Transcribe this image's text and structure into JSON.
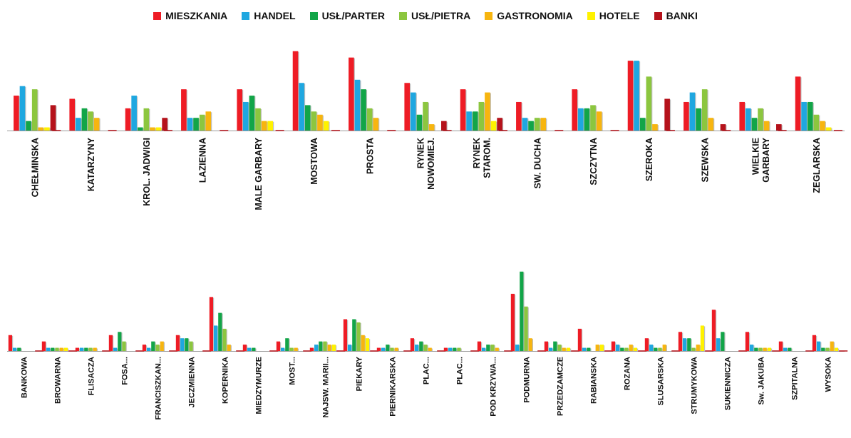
{
  "chart_data": [
    {
      "type": "bar",
      "series_names": [
        "MIESZKANIA",
        "HANDEL",
        "USŁ/PARTER",
        "USŁ/PIETRA",
        "GASTRONOMIA",
        "HOTELE",
        "BANKI"
      ],
      "categories": [
        "CHEŁMINSKA",
        "KATARZYNY",
        "KROL. JADWIGI",
        "LAZIENNA",
        "MALE GARBARY",
        "MOSTOWA",
        "PROSTA",
        "RYNEK NOWOMIEJ.",
        "RYNEK STAROM.",
        "SW. DUCHA",
        "SZCZYTNA",
        "SZEROKA",
        "SZEWSKA",
        "WIELKIE GARBARY",
        "ZEGLARSKA"
      ],
      "series": [
        {
          "name": "MIESZKANIA",
          "values": [
            11,
            10,
            7,
            13,
            13,
            25,
            23,
            15,
            13,
            9,
            13,
            22,
            9,
            9,
            17
          ]
        },
        {
          "name": "HANDEL",
          "values": [
            14,
            4,
            11,
            4,
            9,
            15,
            16,
            12,
            6,
            4,
            7,
            22,
            12,
            7,
            9
          ]
        },
        {
          "name": "USŁ/PARTER",
          "values": [
            3,
            7,
            1,
            4,
            11,
            8,
            13,
            5,
            6,
            3,
            7,
            4,
            7,
            4,
            9
          ]
        },
        {
          "name": "USŁ/PIETRA",
          "values": [
            13,
            6,
            7,
            5,
            7,
            6,
            7,
            9,
            9,
            4,
            8,
            17,
            13,
            7,
            5
          ]
        },
        {
          "name": "GASTRONOMIA",
          "values": [
            1,
            4,
            1,
            6,
            3,
            5,
            4,
            2,
            12,
            4,
            6,
            2,
            4,
            3,
            3
          ]
        },
        {
          "name": "HOTELE",
          "values": [
            1,
            0,
            1,
            0,
            3,
            3,
            0,
            0,
            3,
            0,
            0,
            0,
            0,
            0,
            1
          ]
        },
        {
          "name": "BANKI",
          "values": [
            8,
            0,
            4,
            0,
            0,
            0,
            0,
            3,
            4,
            0,
            0,
            10,
            2,
            2,
            0
          ]
        }
      ]
    },
    {
      "type": "bar",
      "series_names": [
        "MIESZKANIA",
        "HANDEL",
        "USŁ/PARTER",
        "USŁ/PIETRA",
        "GASTRONOMIA",
        "HOTELE",
        "BANKI"
      ],
      "categories": [
        "BANKOWA",
        "BROWARNA",
        "FLISACZA",
        "FOSA...",
        "FRANCISZKAN...",
        "JECZMIENNA",
        "KOPERNIKA",
        "MIEDZYMURZE",
        "MOST...",
        "NAJSW. MARII...",
        "PIEKARY",
        "PIERNIKARSKA",
        "PLAC...",
        "PLAC...",
        "POD KRZYWA...",
        "PODMURNA",
        "PRZEDZAMCZE",
        "RABIANSKA",
        "ROZANA",
        "SLUSARSKA",
        "STRUMYKOWA",
        "SUKIENNICZA",
        "Sw. JAKUBA",
        "SZPITALNA",
        "WYSOKA"
      ],
      "series": [
        {
          "name": "MIESZKANIA",
          "values": [
            5,
            3,
            1,
            5,
            2,
            5,
            17,
            2,
            3,
            1,
            10,
            1,
            4,
            1,
            3,
            18,
            3,
            7,
            3,
            4,
            6,
            13,
            6,
            3,
            5
          ]
        },
        {
          "name": "HANDEL",
          "values": [
            1,
            1,
            1,
            1,
            1,
            4,
            8,
            1,
            1,
            2,
            2,
            1,
            2,
            1,
            1,
            2,
            1,
            1,
            2,
            2,
            4,
            4,
            2,
            1,
            3
          ]
        },
        {
          "name": "USŁ/PARTER",
          "values": [
            1,
            1,
            1,
            6,
            3,
            4,
            12,
            1,
            4,
            3,
            10,
            2,
            3,
            1,
            2,
            25,
            3,
            1,
            1,
            1,
            4,
            6,
            1,
            1,
            1
          ]
        },
        {
          "name": "USŁ/PIETRA",
          "values": [
            0,
            1,
            1,
            3,
            2,
            3,
            7,
            0,
            1,
            3,
            9,
            1,
            2,
            1,
            2,
            14,
            2,
            0,
            1,
            1,
            1,
            0,
            1,
            0,
            1
          ]
        },
        {
          "name": "GASTRONOMIA",
          "values": [
            0,
            1,
            1,
            0,
            3,
            0,
            2,
            0,
            1,
            2,
            5,
            1,
            1,
            0,
            1,
            4,
            1,
            2,
            2,
            2,
            2,
            0,
            1,
            0,
            3
          ]
        },
        {
          "name": "HOTELE",
          "values": [
            0,
            1,
            0,
            0,
            0,
            0,
            0,
            0,
            0,
            2,
            4,
            0,
            0,
            0,
            0,
            0,
            1,
            2,
            1,
            0,
            8,
            0,
            1,
            0,
            1
          ]
        },
        {
          "name": "BANKI",
          "values": [
            0,
            0,
            0,
            0,
            0,
            0,
            0,
            0,
            0,
            0,
            0,
            0,
            0,
            0,
            0,
            0,
            0,
            0,
            0,
            0,
            0,
            0,
            0,
            0,
            0
          ]
        }
      ]
    }
  ],
  "legend": [
    {
      "label": "MIESZKANIA",
      "color": "#ee1c25"
    },
    {
      "label": "HANDEL",
      "color": "#1fa7e0"
    },
    {
      "label": "USŁ/PARTER",
      "color": "#12a548"
    },
    {
      "label": "USŁ/PIETRA",
      "color": "#8cc63f"
    },
    {
      "label": "GASTRONOMIA",
      "color": "#f7b50f"
    },
    {
      "label": "HOTELE",
      "color": "#fff200"
    },
    {
      "label": "BANKI",
      "color": "#b5121b"
    }
  ]
}
